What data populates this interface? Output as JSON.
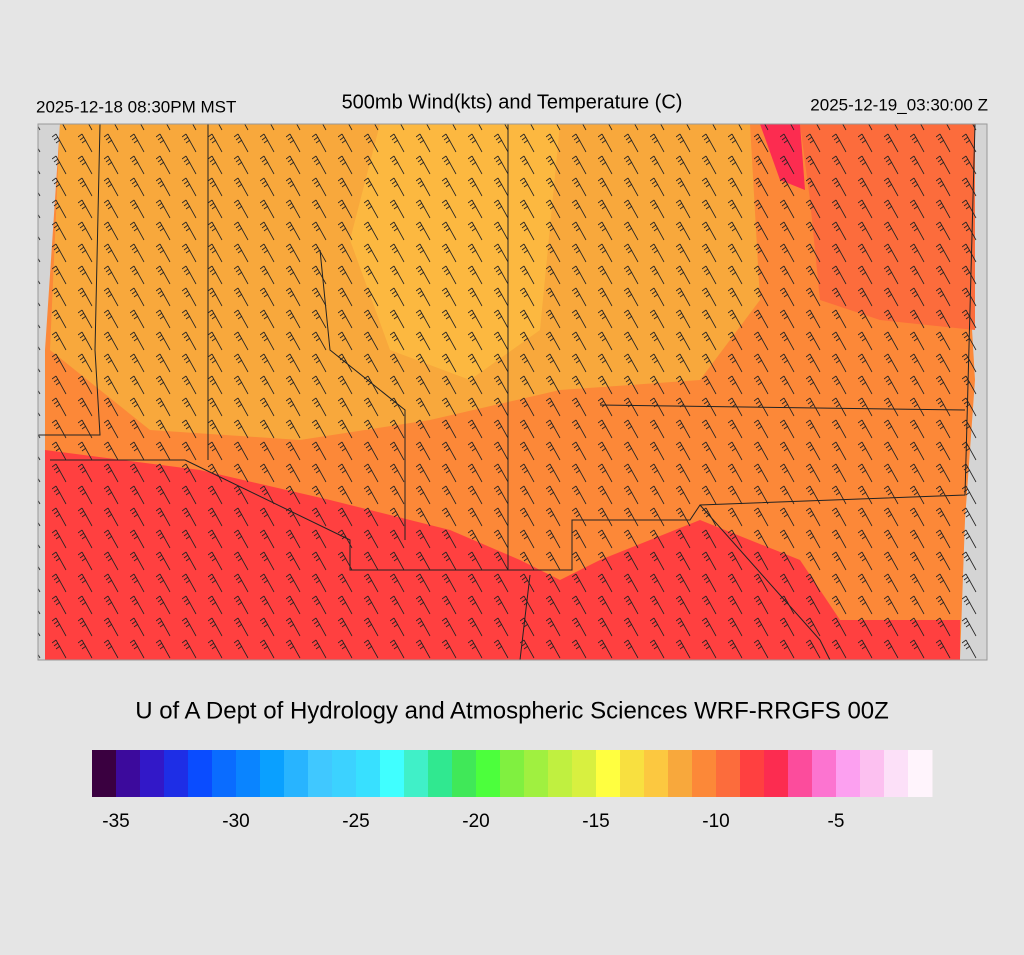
{
  "header": {
    "left": "2025-12-18 08:30PM MST",
    "title": "500mb Wind(kts) and Temperature (C)",
    "right": "2025-12-19_03:30:00 Z"
  },
  "footer": "U of A Dept of Hydrology and Atmospheric Sciences WRF-RRGFS 00Z",
  "colorbar": {
    "bounds": [
      -36,
      -1
    ],
    "ticks": [
      -35,
      -30,
      -25,
      -20,
      -15,
      -10,
      -5
    ],
    "colors": [
      "#3a0040",
      "#3c0a9c",
      "#3218c8",
      "#1e2ee6",
      "#0a4cff",
      "#0a6cff",
      "#0a84ff",
      "#0aa0ff",
      "#28b4ff",
      "#40c8ff",
      "#3cd2ff",
      "#38e0ff",
      "#40ffff",
      "#40f0c8",
      "#30e890",
      "#40e858",
      "#4cff3c",
      "#80f040",
      "#a0f040",
      "#c0f040",
      "#d8f040",
      "#ffff40",
      "#f8e040",
      "#fcc840",
      "#f8a83c",
      "#fc8838",
      "#fc6c3c",
      "#ff4040",
      "#fc2c50",
      "#fc4c9c",
      "#fc74d0",
      "#fca0f0",
      "#fcc0f0",
      "#fce0f8",
      "#fff4fc"
    ]
  }
}
